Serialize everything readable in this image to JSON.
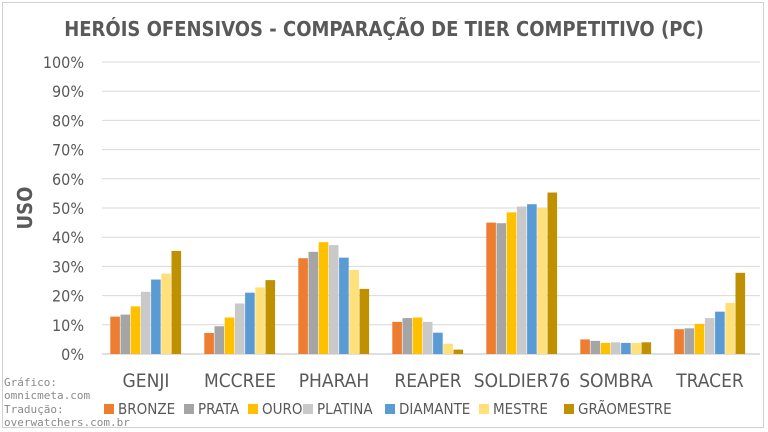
{
  "chart_data": {
    "type": "bar",
    "title": "HERÓIS OFENSIVOS - COMPARAÇÃO DE TIER COMPETITIVO (PC)",
    "ylabel": "USO",
    "xlabel": "",
    "ylim": [
      0,
      100
    ],
    "y_ticks": [
      "0%",
      "10%",
      "20%",
      "30%",
      "40%",
      "50%",
      "60%",
      "70%",
      "80%",
      "90%",
      "100%"
    ],
    "categories": [
      "GENJI",
      "MCCREE",
      "PHARAH",
      "REAPER",
      "SOLDIER76",
      "SOMBRA",
      "TRACER"
    ],
    "series": [
      {
        "name": "BRONZE",
        "color": "#ED7D31",
        "values": [
          12.8,
          7.2,
          32.8,
          11.0,
          45.0,
          5.0,
          8.5
        ]
      },
      {
        "name": "PRATA",
        "color": "#A5A5A5",
        "values": [
          13.5,
          9.5,
          35.0,
          12.3,
          44.8,
          4.5,
          8.8
        ]
      },
      {
        "name": "OURO",
        "color": "#FFC000",
        "values": [
          16.3,
          12.5,
          38.3,
          12.5,
          48.5,
          3.8,
          10.3
        ]
      },
      {
        "name": "PLATINA",
        "color": "#C9C9C9",
        "values": [
          21.3,
          17.3,
          37.3,
          11.0,
          50.5,
          4.0,
          12.3
        ]
      },
      {
        "name": "DIAMANTE",
        "color": "#5B9BD5",
        "values": [
          25.5,
          21.0,
          33.0,
          7.3,
          51.3,
          3.8,
          14.5
        ]
      },
      {
        "name": "MESTRE",
        "color": "#FFE07A",
        "values": [
          27.5,
          22.8,
          28.8,
          3.5,
          50.0,
          3.8,
          17.5
        ]
      },
      {
        "name": "GRÃOMESTRE",
        "color": "#BF9000",
        "values": [
          35.3,
          25.3,
          22.3,
          1.5,
          55.3,
          4.0,
          27.8
        ]
      }
    ],
    "grid": true,
    "legend": "bottom"
  },
  "credits": {
    "line1": "Gráfico:",
    "line2": "omnicmeta.com",
    "line3": "Tradução:",
    "line4": "overwatchers.com.br"
  }
}
